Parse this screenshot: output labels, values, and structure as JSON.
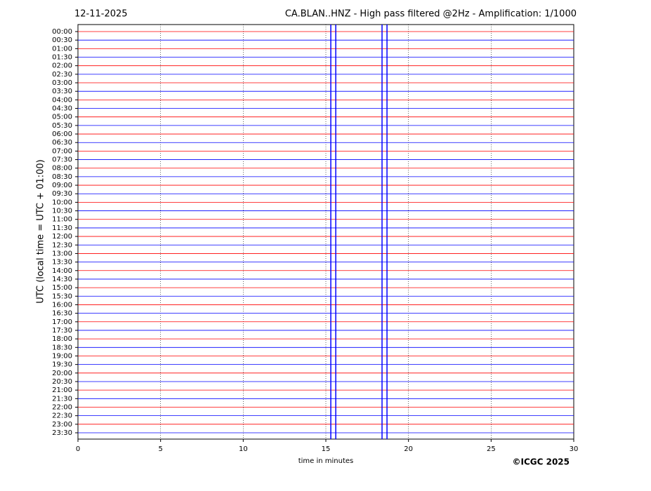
{
  "chart_data": {
    "type": "helicorder",
    "date": "12-11-2025",
    "title": "CA.BLAN..HNZ - High pass filtered @2Hz - Amplification: 1/1000",
    "y_label": "UTC (local time = UTC + 01:00)",
    "x_label": "time in minutes",
    "credit": "©ICGC 2025",
    "xlim": [
      0,
      30
    ],
    "xticks": [
      0,
      5,
      10,
      15,
      20,
      25,
      30
    ],
    "grid": true,
    "trace_colors": [
      "#ff0000",
      "#0000ff"
    ],
    "rows": [
      "00:00",
      "00:30",
      "01:00",
      "01:30",
      "02:00",
      "02:30",
      "03:00",
      "03:30",
      "04:00",
      "04:30",
      "05:00",
      "05:30",
      "06:00",
      "06:30",
      "07:00",
      "07:30",
      "08:00",
      "08:30",
      "09:00",
      "09:30",
      "10:00",
      "10:30",
      "11:00",
      "11:30",
      "12:00",
      "12:30",
      "13:00",
      "13:30",
      "14:00",
      "14:30",
      "15:00",
      "15:30",
      "16:00",
      "16:30",
      "17:00",
      "17:30",
      "18:00",
      "18:30",
      "19:00",
      "19:30",
      "20:00",
      "20:30",
      "21:00",
      "21:30",
      "22:00",
      "22:30",
      "23:00",
      "23:30"
    ],
    "events": [
      {
        "x": 15.3,
        "color": "#0000ff"
      },
      {
        "x": 15.6,
        "color": "#0000ff"
      },
      {
        "x": 18.4,
        "color": "#0000ff"
      },
      {
        "x": 18.7,
        "color": "#0000ff"
      }
    ]
  }
}
